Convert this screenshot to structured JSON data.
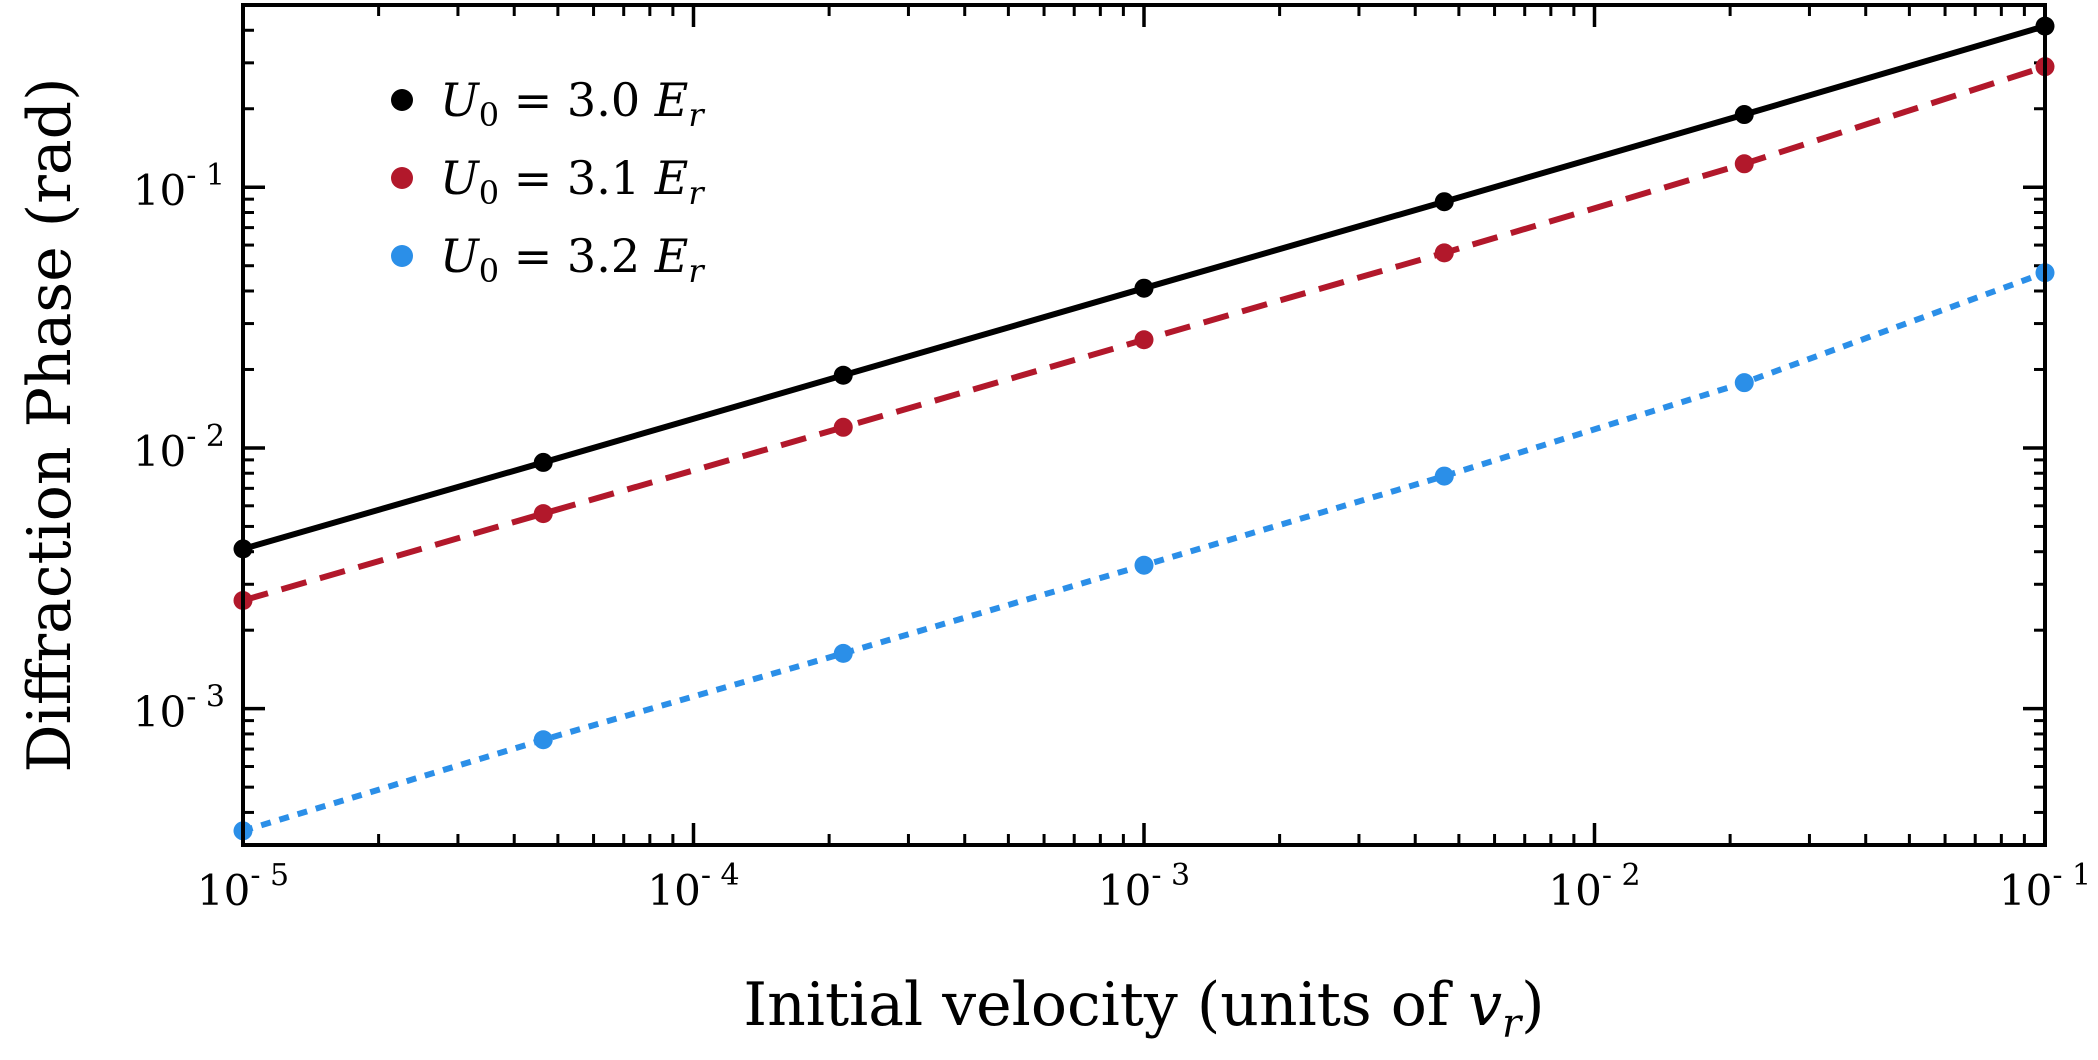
{
  "chart_data": {
    "type": "line",
    "title": "",
    "xlabel_main": "Initial velocity (units of ",
    "xlabel_var": "v",
    "xlabel_sub": "r",
    "xlabel_close": ")",
    "ylabel": "Diffraction Phase (rad)",
    "xscale": "log",
    "yscale": "log",
    "xlim": [
      1e-05,
      0.1
    ],
    "ylim": [
      0.0003,
      0.5
    ],
    "x_ticks": [
      {
        "value": 1e-05,
        "base": "10",
        "exp": "- 5"
      },
      {
        "value": 0.0001,
        "base": "10",
        "exp": "- 4"
      },
      {
        "value": 0.001,
        "base": "10",
        "exp": "- 3"
      },
      {
        "value": 0.01,
        "base": "10",
        "exp": "- 2"
      },
      {
        "value": 0.1,
        "base": "10",
        "exp": "- 1"
      }
    ],
    "y_ticks": [
      {
        "value": 0.001,
        "base": "10",
        "exp": "- 3"
      },
      {
        "value": 0.01,
        "base": "10",
        "exp": "- 2"
      },
      {
        "value": 0.1,
        "base": "10",
        "exp": "- 1"
      }
    ],
    "x": [
      1e-05,
      4.64e-05,
      0.000215,
      0.001,
      0.00464,
      0.0215,
      0.1
    ],
    "series": [
      {
        "name": "U0 = 3.0 Er",
        "legend_var": "U",
        "legend_sub": "0",
        "legend_eq": " = 3.0 ",
        "legend_unit": "E",
        "legend_unit_sub": "r",
        "color": "#000000",
        "dash": "solid",
        "values": [
          0.0041,
          0.0088,
          0.019,
          0.041,
          0.088,
          0.19,
          0.415
        ]
      },
      {
        "name": "U0 = 3.1 Er",
        "legend_var": "U",
        "legend_sub": "0",
        "legend_eq": " = 3.1 ",
        "legend_unit": "E",
        "legend_unit_sub": "r",
        "color": "#b2182b",
        "dash": "dashed",
        "values": [
          0.0026,
          0.0056,
          0.012,
          0.026,
          0.056,
          0.123,
          0.29
        ]
      },
      {
        "name": "U0 = 3.2 Er",
        "legend_var": "U",
        "legend_sub": "0",
        "legend_eq": " = 3.2 ",
        "legend_unit": "E",
        "legend_unit_sub": "r",
        "color": "#2b8fe8",
        "dash": "dotted",
        "values": [
          0.00034,
          0.00076,
          0.00163,
          0.00355,
          0.0078,
          0.0178,
          0.047
        ]
      }
    ],
    "legend_position": "top-left",
    "grid": false
  }
}
